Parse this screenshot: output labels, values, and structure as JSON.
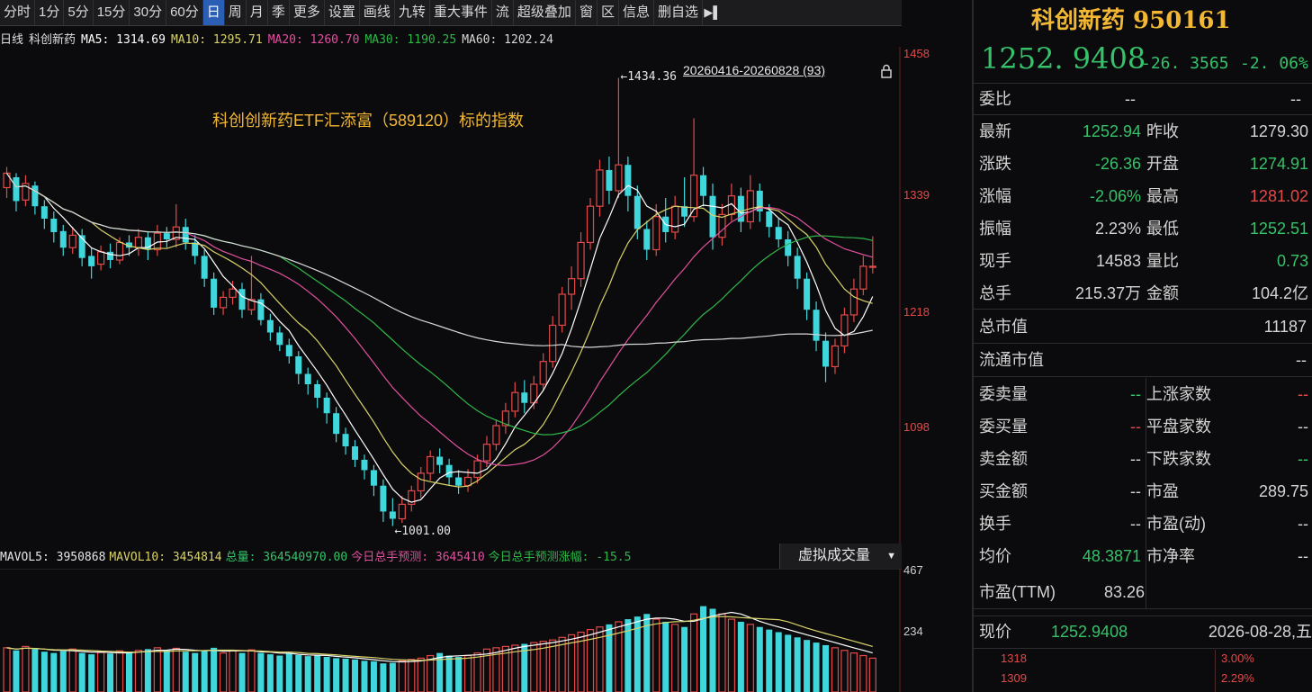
{
  "toolbar": {
    "items": [
      "分时",
      "1分",
      "5分",
      "15分",
      "30分",
      "60分",
      "日",
      "周",
      "月",
      "季",
      "更多",
      "设置",
      "画线",
      "九转",
      "重大事件",
      "流",
      "超级叠加",
      "窗",
      "区",
      "信息",
      "删自选"
    ],
    "active": "日"
  },
  "ma_line": {
    "kind": "日线",
    "name": "科创新药",
    "ma5": "MA5: 1314.69",
    "ma10": "MA10: 1295.71",
    "ma20": "MA20: 1260.70",
    "ma30": "MA30: 1190.25",
    "ma60": "MA60: 1202.24"
  },
  "range_label": "20260416-20260828 (93)",
  "annotation": "科创创新药ETF汇添富（589120）标的指数",
  "peak_label": "1434.36",
  "trough_label": "1001.00",
  "volume_header": {
    "mavol5": "MAVOL5: 3950868",
    "mavol10": "MAVOL10: 3454814",
    "total": "总量: 364540970.00",
    "forecast": "今日总手预测: 3645410",
    "forecast_pct": "今日总手预测涨幅: -15.5"
  },
  "virtual_volume": "虚拟成交量",
  "colors": {
    "up": "#e24a4a",
    "down": "#3fd6dc",
    "ma5": "#ffffff",
    "ma10": "#d9d36a",
    "ma20": "#e0509e",
    "ma30": "#2fb84a",
    "ma60": "#d8d8d8",
    "gold": "#f2b733",
    "green": "#36c26a"
  },
  "chart_data": {
    "type": "candlestick",
    "y_ticks": [
      1458,
      1339,
      1218,
      1098
    ],
    "ylim": [
      1000,
      1460
    ],
    "vol_ticks": [
      467,
      234
    ],
    "vol_ylim": [
      0,
      467
    ],
    "peak": 1434.36,
    "trough": 1001.0,
    "candles": [
      [
        1328,
        1342,
        1318,
        1348
      ],
      [
        1338,
        1315,
        1305,
        1342
      ],
      [
        1316,
        1332,
        1310,
        1340
      ],
      [
        1330,
        1310,
        1302,
        1334
      ],
      [
        1310,
        1298,
        1288,
        1316
      ],
      [
        1298,
        1285,
        1275,
        1305
      ],
      [
        1286,
        1270,
        1262,
        1292
      ],
      [
        1270,
        1282,
        1264,
        1290
      ],
      [
        1282,
        1260,
        1252,
        1288
      ],
      [
        1262,
        1252,
        1240,
        1270
      ],
      [
        1254,
        1266,
        1248,
        1272
      ],
      [
        1266,
        1258,
        1250,
        1274
      ],
      [
        1258,
        1275,
        1254,
        1280
      ],
      [
        1275,
        1270,
        1262,
        1282
      ],
      [
        1270,
        1280,
        1262,
        1288
      ],
      [
        1280,
        1268,
        1258,
        1286
      ],
      [
        1268,
        1284,
        1262,
        1292
      ],
      [
        1284,
        1278,
        1270,
        1290
      ],
      [
        1278,
        1290,
        1270,
        1312
      ],
      [
        1290,
        1275,
        1268,
        1298
      ],
      [
        1275,
        1262,
        1254,
        1282
      ],
      [
        1262,
        1240,
        1232,
        1268
      ],
      [
        1240,
        1212,
        1205,
        1246
      ],
      [
        1212,
        1222,
        1205,
        1228
      ],
      [
        1222,
        1230,
        1215,
        1238
      ],
      [
        1230,
        1210,
        1202,
        1236
      ],
      [
        1210,
        1220,
        1205,
        1262
      ],
      [
        1220,
        1200,
        1195,
        1226
      ],
      [
        1200,
        1188,
        1180,
        1206
      ],
      [
        1188,
        1176,
        1170,
        1194
      ],
      [
        1176,
        1165,
        1158,
        1182
      ],
      [
        1165,
        1148,
        1138,
        1170
      ],
      [
        1148,
        1138,
        1128,
        1154
      ],
      [
        1138,
        1125,
        1115,
        1142
      ],
      [
        1125,
        1110,
        1100,
        1130
      ],
      [
        1110,
        1090,
        1082,
        1116
      ],
      [
        1090,
        1078,
        1070,
        1096
      ],
      [
        1078,
        1065,
        1058,
        1084
      ],
      [
        1065,
        1055,
        1046,
        1070
      ],
      [
        1055,
        1040,
        1030,
        1060
      ],
      [
        1040,
        1015,
        1005,
        1046
      ],
      [
        1015,
        1008,
        1001,
        1028
      ],
      [
        1008,
        1022,
        1004,
        1030
      ],
      [
        1022,
        1035,
        1015,
        1040
      ],
      [
        1035,
        1052,
        1028,
        1058
      ],
      [
        1052,
        1068,
        1045,
        1074
      ],
      [
        1068,
        1060,
        1052,
        1076
      ],
      [
        1060,
        1048,
        1040,
        1066
      ],
      [
        1048,
        1040,
        1032,
        1055
      ],
      [
        1040,
        1048,
        1034,
        1056
      ],
      [
        1048,
        1064,
        1042,
        1070
      ],
      [
        1064,
        1080,
        1058,
        1088
      ],
      [
        1080,
        1098,
        1074,
        1104
      ],
      [
        1098,
        1112,
        1090,
        1120
      ],
      [
        1112,
        1130,
        1106,
        1140
      ],
      [
        1130,
        1120,
        1110,
        1142
      ],
      [
        1120,
        1138,
        1114,
        1146
      ],
      [
        1138,
        1160,
        1132,
        1168
      ],
      [
        1160,
        1195,
        1154,
        1204
      ],
      [
        1195,
        1225,
        1188,
        1232
      ],
      [
        1225,
        1240,
        1210,
        1252
      ],
      [
        1240,
        1275,
        1232,
        1285
      ],
      [
        1275,
        1310,
        1268,
        1318
      ],
      [
        1310,
        1345,
        1300,
        1355
      ],
      [
        1345,
        1325,
        1312,
        1358
      ],
      [
        1325,
        1350,
        1318,
        1434
      ],
      [
        1350,
        1320,
        1305,
        1358
      ],
      [
        1320,
        1288,
        1278,
        1330
      ],
      [
        1288,
        1268,
        1258,
        1296
      ],
      [
        1268,
        1300,
        1262,
        1312
      ],
      [
        1300,
        1285,
        1275,
        1318
      ],
      [
        1285,
        1310,
        1278,
        1320
      ],
      [
        1310,
        1300,
        1290,
        1338
      ],
      [
        1300,
        1340,
        1295,
        1395
      ],
      [
        1340,
        1320,
        1310,
        1348
      ],
      [
        1320,
        1280,
        1268,
        1332
      ],
      [
        1280,
        1302,
        1272,
        1312
      ],
      [
        1302,
        1320,
        1296,
        1332
      ],
      [
        1320,
        1295,
        1285,
        1328
      ],
      [
        1295,
        1325,
        1288,
        1340
      ],
      [
        1325,
        1305,
        1295,
        1332
      ],
      [
        1305,
        1290,
        1280,
        1312
      ],
      [
        1290,
        1278,
        1270,
        1298
      ],
      [
        1278,
        1262,
        1252,
        1286
      ],
      [
        1262,
        1240,
        1230,
        1270
      ],
      [
        1240,
        1210,
        1200,
        1246
      ],
      [
        1210,
        1180,
        1170,
        1218
      ],
      [
        1180,
        1155,
        1140,
        1188
      ],
      [
        1155,
        1175,
        1148,
        1182
      ],
      [
        1175,
        1205,
        1168,
        1212
      ],
      [
        1205,
        1230,
        1198,
        1240
      ],
      [
        1230,
        1252,
        1224,
        1262
      ],
      [
        1252,
        1252,
        1245,
        1281
      ]
    ],
    "volumes": [
      170,
      160,
      175,
      165,
      155,
      150,
      158,
      165,
      150,
      145,
      152,
      148,
      158,
      150,
      160,
      165,
      170,
      160,
      168,
      155,
      150,
      160,
      170,
      150,
      160,
      150,
      162,
      150,
      145,
      140,
      148,
      142,
      138,
      140,
      135,
      130,
      128,
      125,
      120,
      118,
      110,
      112,
      120,
      125,
      130,
      140,
      150,
      140,
      135,
      140,
      150,
      165,
      170,
      175,
      180,
      185,
      190,
      195,
      200,
      210,
      220,
      230,
      240,
      250,
      260,
      270,
      280,
      290,
      300,
      280,
      270,
      260,
      250,
      300,
      330,
      320,
      300,
      280,
      270,
      260,
      250,
      240,
      230,
      220,
      210,
      200,
      190,
      180,
      170,
      160,
      150,
      140,
      130
    ]
  },
  "panel": {
    "title": "科创新药 950161",
    "price": "1252. 9408",
    "chg_abs": "-26. 3565",
    "chg_pct": "-2. 06%",
    "webi": {
      "label": "委比",
      "v1": "--",
      "v2": "--"
    },
    "rows": [
      {
        "l1": "最新",
        "v1": "1252.94",
        "c1": "g",
        "l2": "昨收",
        "v2": "1279.30",
        "c2": "w"
      },
      {
        "l1": "涨跌",
        "v1": "-26.36",
        "c1": "g",
        "l2": "开盘",
        "v2": "1274.91",
        "c2": "g"
      },
      {
        "l1": "涨幅",
        "v1": "-2.06%",
        "c1": "g",
        "l2": "最高",
        "v2": "1281.02",
        "c2": "r"
      },
      {
        "l1": "振幅",
        "v1": "2.23%",
        "c1": "w",
        "l2": "最低",
        "v2": "1252.51",
        "c2": "g"
      },
      {
        "l1": "现手",
        "v1": "14583",
        "c1": "w",
        "l2": "量比",
        "v2": "0.73",
        "c2": "g"
      },
      {
        "l1": "总手",
        "v1": "215.37万",
        "c1": "w",
        "l2": "金额",
        "v2": "104.2亿",
        "c2": "w"
      }
    ],
    "mktcap": {
      "label": "总市值",
      "value": "11187"
    },
    "float_mktcap": {
      "label": "流通市值",
      "value": "--"
    },
    "rows2": [
      {
        "l1": "委卖量",
        "v1": "--",
        "c1": "g",
        "l2": "上涨家数",
        "v2": "--",
        "c2": "r"
      },
      {
        "l1": "委买量",
        "v1": "--",
        "c1": "r",
        "l2": "平盘家数",
        "v2": "--",
        "c2": "w"
      },
      {
        "l1": "卖金额",
        "v1": "--",
        "c1": "w",
        "l2": "下跌家数",
        "v2": "--",
        "c2": "g"
      },
      {
        "l1": "买金额",
        "v1": "--",
        "c1": "w",
        "l2": "市盈",
        "v2": "289.75",
        "c2": "w"
      },
      {
        "l1": "换手",
        "v1": "--",
        "c1": "w",
        "l2": "市盈(动)",
        "v2": "--",
        "c2": "w"
      },
      {
        "l1": "均价",
        "v1": "48.3871",
        "c1": "g",
        "l2": "市净率",
        "v2": "--",
        "c2": "w"
      }
    ],
    "pe_ttm": {
      "label": "市盈(TTM)",
      "value": "83.26"
    },
    "now": {
      "label": "现价",
      "value": "1252.9408",
      "date": "2026-08-28,五"
    },
    "mini": {
      "p1": "1318",
      "p2": "1309",
      "pct1": "3.00%",
      "pct2": "2.29%"
    }
  }
}
